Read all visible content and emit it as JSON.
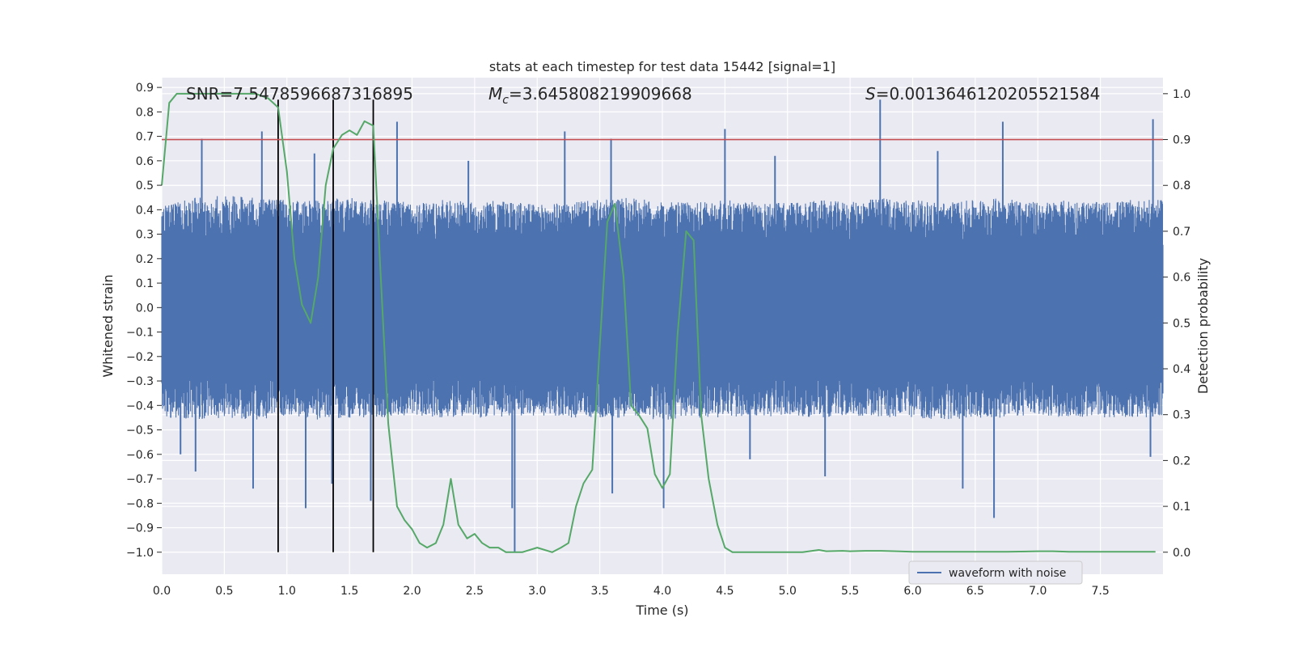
{
  "chart_data": {
    "type": "line",
    "title": "stats at each timestep for test data 15442 [signal=1]",
    "xlabel": "Time (s)",
    "ylabel_left": "Whitened strain",
    "ylabel_right": "Detection probability",
    "xlim": [
      0.0,
      8.0
    ],
    "ylim_left": [
      -1.09,
      0.94
    ],
    "ylim_right": [
      -0.048,
      1.035
    ],
    "grid": true,
    "x_ticks": [
      "0.0",
      "0.5",
      "1.0",
      "1.5",
      "2.0",
      "2.5",
      "3.0",
      "3.5",
      "4.0",
      "4.5",
      "5.0",
      "5.5",
      "6.0",
      "6.5",
      "7.0",
      "7.5"
    ],
    "y_left_ticks": [
      "0.9",
      "0.8",
      "0.7",
      "0.6",
      "0.5",
      "0.4",
      "0.3",
      "0.2",
      "0.1",
      "0.0",
      "−0.1",
      "−0.2",
      "−0.3",
      "−0.4",
      "−0.5",
      "−0.6",
      "−0.7",
      "−0.8",
      "−0.9",
      "−1.0"
    ],
    "y_right_ticks": [
      "1.0",
      "0.9",
      "0.8",
      "0.7",
      "0.6",
      "0.5",
      "0.4",
      "0.3",
      "0.2",
      "0.1",
      "0.0"
    ],
    "annotations": {
      "snr": "SNR=7.547859668731689​5",
      "mc_symbol": "M",
      "mc_sub": "c",
      "mc_value": "=3.645808219909668",
      "s_symbol": "S",
      "s_value": "=0.0013646120205521584"
    },
    "threshold": {
      "value": 0.9,
      "axis": "right",
      "color": "#c44e52"
    },
    "vertical_lines": {
      "x": [
        0.93,
        1.37,
        1.69
      ],
      "ymin": -1.0,
      "ymax": 0.85,
      "color": "#000000"
    },
    "series": [
      {
        "name": "waveform with noise",
        "axis": "left",
        "color": "#4c72b0",
        "envelope": {
          "x": [
            0.0,
            0.25,
            0.5,
            0.75,
            1.0,
            1.25,
            1.5,
            1.75,
            2.0,
            2.25,
            2.5,
            2.75,
            3.0,
            3.25,
            3.5,
            3.75,
            4.0,
            4.25,
            4.5,
            4.75,
            5.0,
            5.25,
            5.5,
            5.75,
            6.0,
            6.25,
            6.5,
            6.75,
            7.0,
            7.25,
            7.5,
            7.75,
            8.0
          ],
          "upper": [
            0.42,
            0.45,
            0.46,
            0.45,
            0.44,
            0.44,
            0.45,
            0.44,
            0.43,
            0.44,
            0.43,
            0.44,
            0.42,
            0.43,
            0.44,
            0.45,
            0.43,
            0.43,
            0.44,
            0.43,
            0.43,
            0.44,
            0.43,
            0.45,
            0.44,
            0.43,
            0.44,
            0.45,
            0.43,
            0.44,
            0.43,
            0.44,
            0.44
          ],
          "lower": [
            -0.45,
            -0.46,
            -0.45,
            -0.46,
            -0.44,
            -0.46,
            -0.45,
            -0.45,
            -0.44,
            -0.45,
            -0.45,
            -0.45,
            -0.44,
            -0.45,
            -0.45,
            -0.45,
            -0.46,
            -0.45,
            -0.45,
            -0.45,
            -0.44,
            -0.45,
            -0.44,
            -0.45,
            -0.45,
            -0.46,
            -0.45,
            -0.45,
            -0.44,
            -0.45,
            -0.45,
            -0.45,
            -0.45
          ]
        },
        "peaks": [
          {
            "x": 0.32,
            "y": 0.69
          },
          {
            "x": 0.8,
            "y": 0.72
          },
          {
            "x": 1.22,
            "y": 0.63
          },
          {
            "x": 1.88,
            "y": 0.76
          },
          {
            "x": 3.22,
            "y": 0.72
          },
          {
            "x": 3.59,
            "y": 0.69
          },
          {
            "x": 4.5,
            "y": 0.73
          },
          {
            "x": 5.74,
            "y": 0.85
          },
          {
            "x": 6.72,
            "y": 0.76
          },
          {
            "x": 7.92,
            "y": 0.77
          },
          {
            "x": 4.9,
            "y": 0.62
          },
          {
            "x": 6.2,
            "y": 0.64
          },
          {
            "x": 2.45,
            "y": 0.6
          },
          {
            "x": 0.27,
            "y": -0.67
          },
          {
            "x": 0.73,
            "y": -0.74
          },
          {
            "x": 1.15,
            "y": -0.82
          },
          {
            "x": 1.36,
            "y": -0.72
          },
          {
            "x": 1.67,
            "y": -0.79
          },
          {
            "x": 2.8,
            "y": -0.82
          },
          {
            "x": 2.82,
            "y": -1.0
          },
          {
            "x": 3.6,
            "y": -0.76
          },
          {
            "x": 4.01,
            "y": -0.82
          },
          {
            "x": 5.3,
            "y": -0.69
          },
          {
            "x": 6.4,
            "y": -0.74
          },
          {
            "x": 6.65,
            "y": -0.86
          },
          {
            "x": 7.9,
            "y": -0.61
          },
          {
            "x": 0.15,
            "y": -0.6
          },
          {
            "x": 4.7,
            "y": -0.62
          }
        ]
      },
      {
        "name": "",
        "axis": "right",
        "color": "#55a868",
        "x": [
          0.0,
          0.06,
          0.12,
          0.25,
          0.5,
          0.75,
          0.85,
          0.93,
          1.0,
          1.06,
          1.12,
          1.19,
          1.25,
          1.31,
          1.37,
          1.44,
          1.5,
          1.56,
          1.62,
          1.69,
          1.75,
          1.81,
          1.88,
          1.94,
          2.0,
          2.06,
          2.12,
          2.19,
          2.25,
          2.31,
          2.37,
          2.44,
          2.5,
          2.56,
          2.62,
          2.69,
          2.75,
          2.81,
          2.88,
          3.0,
          3.12,
          3.19,
          3.25,
          3.31,
          3.37,
          3.44,
          3.5,
          3.56,
          3.62,
          3.69,
          3.75,
          3.81,
          3.88,
          3.94,
          4.0,
          4.06,
          4.12,
          4.19,
          4.25,
          4.31,
          4.37,
          4.44,
          4.5,
          4.56,
          4.75,
          5.0,
          5.12,
          5.25,
          5.31,
          5.44,
          5.5,
          5.62,
          5.75,
          5.87,
          6.0,
          6.25,
          6.5,
          6.75,
          7.0,
          7.12,
          7.25,
          7.5,
          7.75,
          7.94
        ],
        "y": [
          0.8,
          0.98,
          1.0,
          1.0,
          1.0,
          1.0,
          0.99,
          0.97,
          0.83,
          0.64,
          0.54,
          0.5,
          0.6,
          0.8,
          0.88,
          0.91,
          0.92,
          0.91,
          0.94,
          0.93,
          0.6,
          0.28,
          0.1,
          0.07,
          0.05,
          0.02,
          0.01,
          0.02,
          0.06,
          0.16,
          0.06,
          0.03,
          0.04,
          0.02,
          0.01,
          0.01,
          0.0,
          0.0,
          0.0,
          0.01,
          0.0,
          0.01,
          0.02,
          0.1,
          0.15,
          0.18,
          0.45,
          0.72,
          0.76,
          0.6,
          0.32,
          0.3,
          0.27,
          0.17,
          0.14,
          0.17,
          0.47,
          0.7,
          0.68,
          0.3,
          0.16,
          0.06,
          0.01,
          0.0,
          0.0,
          0.0,
          0.0,
          0.005,
          0.002,
          0.003,
          0.002,
          0.003,
          0.003,
          0.002,
          0.001,
          0.001,
          0.001,
          0.001,
          0.002,
          0.002,
          0.001,
          0.001,
          0.001,
          0.001
        ]
      }
    ],
    "legend": {
      "position": "lower-right",
      "entries": [
        "waveform with noise"
      ]
    }
  }
}
